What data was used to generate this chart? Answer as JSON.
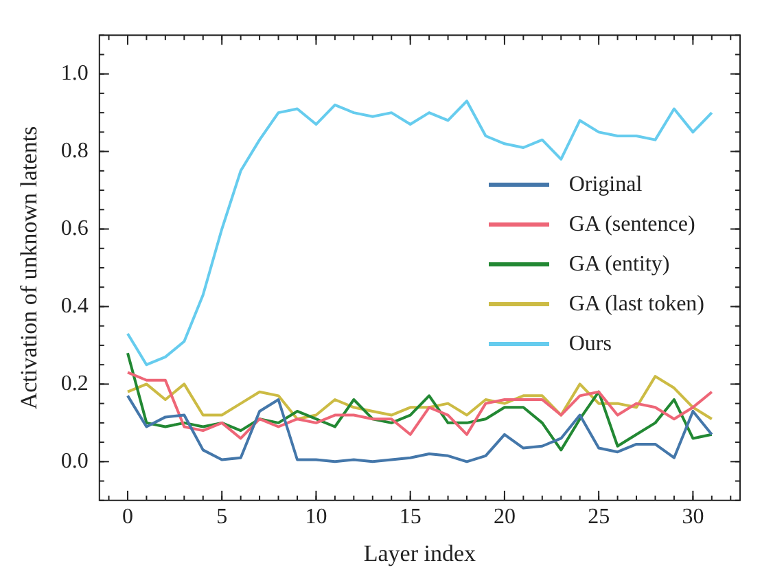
{
  "chart_data": {
    "type": "line",
    "xlabel": "Layer index",
    "ylabel": "Activation of unknown latents",
    "x": [
      0,
      1,
      2,
      3,
      4,
      5,
      6,
      7,
      8,
      9,
      10,
      11,
      12,
      13,
      14,
      15,
      16,
      17,
      18,
      19,
      20,
      21,
      22,
      23,
      24,
      25,
      26,
      27,
      28,
      29,
      30,
      31
    ],
    "series": [
      {
        "name": "Original",
        "color": "#4477aa",
        "values": [
          0.17,
          0.09,
          0.115,
          0.12,
          0.03,
          0.005,
          0.01,
          0.13,
          0.16,
          0.005,
          0.005,
          0.0,
          0.005,
          0.0,
          0.005,
          0.01,
          0.02,
          0.015,
          0.0,
          0.015,
          0.07,
          0.035,
          0.04,
          0.06,
          0.12,
          0.035,
          0.025,
          0.045,
          0.045,
          0.01,
          0.13,
          0.07
        ]
      },
      {
        "name": "GA (sentence)",
        "color": "#ee6677",
        "values": [
          0.23,
          0.21,
          0.21,
          0.09,
          0.08,
          0.1,
          0.06,
          0.11,
          0.09,
          0.11,
          0.1,
          0.12,
          0.12,
          0.11,
          0.11,
          0.07,
          0.14,
          0.12,
          0.07,
          0.15,
          0.16,
          0.16,
          0.16,
          0.12,
          0.17,
          0.18,
          0.12,
          0.15,
          0.14,
          0.11,
          0.14,
          0.18
        ]
      },
      {
        "name": "GA (entity)",
        "color": "#228833",
        "values": [
          0.28,
          0.1,
          0.09,
          0.1,
          0.09,
          0.1,
          0.08,
          0.11,
          0.1,
          0.13,
          0.11,
          0.09,
          0.16,
          0.11,
          0.1,
          0.12,
          0.17,
          0.1,
          0.1,
          0.11,
          0.14,
          0.14,
          0.1,
          0.03,
          0.11,
          0.18,
          0.04,
          0.07,
          0.1,
          0.16,
          0.06,
          0.07
        ]
      },
      {
        "name": "GA (last token)",
        "color": "#ccbb44",
        "values": [
          0.18,
          0.2,
          0.16,
          0.2,
          0.12,
          0.12,
          0.15,
          0.18,
          0.17,
          0.11,
          0.12,
          0.16,
          0.14,
          0.13,
          0.12,
          0.14,
          0.14,
          0.15,
          0.12,
          0.16,
          0.15,
          0.17,
          0.17,
          0.12,
          0.2,
          0.15,
          0.15,
          0.14,
          0.22,
          0.19,
          0.14,
          0.11
        ]
      },
      {
        "name": "Ours",
        "color": "#66ccee",
        "values": [
          0.33,
          0.25,
          0.27,
          0.31,
          0.43,
          0.6,
          0.75,
          0.83,
          0.9,
          0.91,
          0.87,
          0.92,
          0.9,
          0.89,
          0.9,
          0.87,
          0.9,
          0.88,
          0.93,
          0.84,
          0.82,
          0.81,
          0.83,
          0.78,
          0.88,
          0.85,
          0.84,
          0.84,
          0.83,
          0.91,
          0.85,
          0.9
        ]
      }
    ],
    "xlim": [
      -1.5,
      32.5
    ],
    "xticks": [
      0,
      5,
      10,
      15,
      20,
      25,
      30
    ],
    "ylim": [
      -0.1,
      1.1
    ],
    "yticks": [
      {
        "value": 0,
        "label": "0.0"
      },
      {
        "value": 0.2,
        "label": "0.2"
      },
      {
        "value": 0.4,
        "label": "0.4"
      },
      {
        "value": 0.6,
        "label": "0.6"
      },
      {
        "value": 0.8,
        "label": "0.8"
      },
      {
        "value": 1,
        "label": "1.0"
      }
    ],
    "grid": false,
    "legend": "right",
    "line_style": "solid",
    "marker": "none"
  }
}
